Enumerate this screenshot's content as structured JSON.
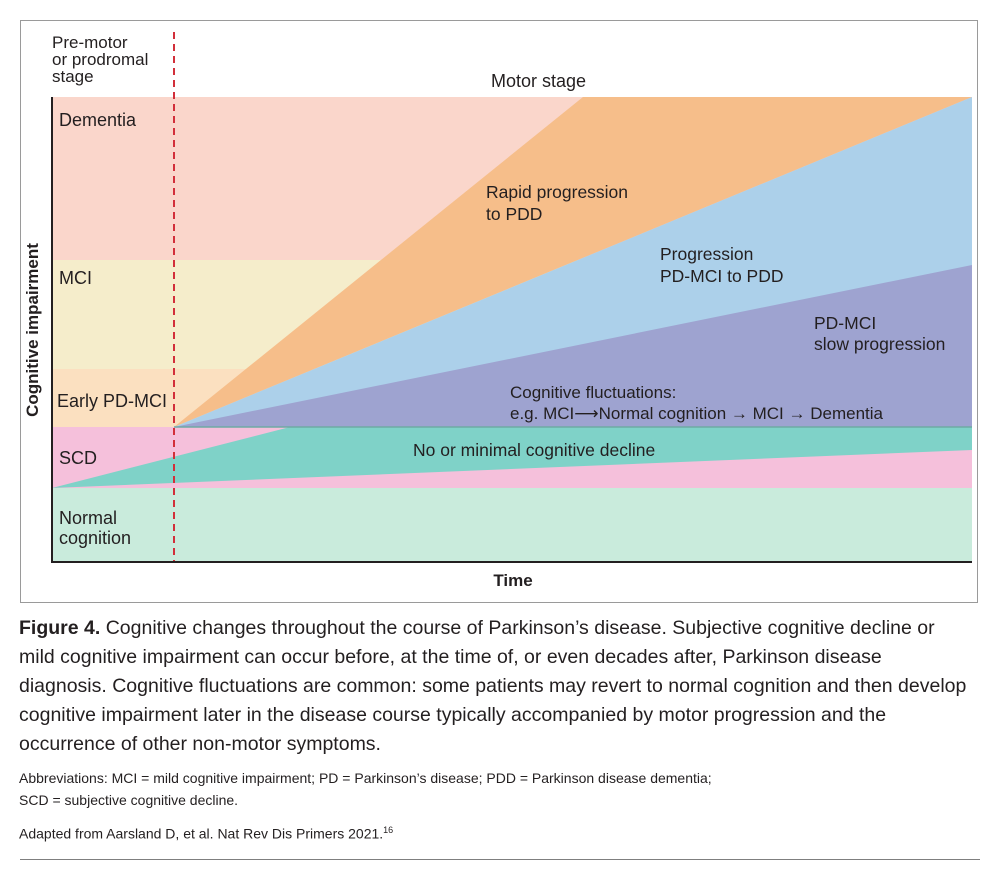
{
  "diagram": {
    "stage_labels": {
      "premotor": [
        "Pre-motor",
        "or prodromal",
        "stage"
      ],
      "motor": "Motor stage"
    },
    "y_axis_label": "Cognitive impairment",
    "x_axis_label": "Time",
    "level_labels": {
      "dementia": "Dementia",
      "mci": "MCI",
      "early_pd_mci": "Early PD-MCI",
      "scd": "SCD",
      "normal": [
        "Normal",
        "cognition"
      ]
    },
    "trajectory_labels": {
      "rapid": [
        "Rapid progression",
        "to PDD"
      ],
      "progression": [
        "Progression",
        "PD-MCI to PDD"
      ],
      "slow": [
        "PD-MCI",
        "slow progression"
      ],
      "fluctuations": [
        "Cognitive fluctuations:",
        "e.g. MCI⟶Normal cognition → MCI → Dementia"
      ],
      "no_decline": "No or minimal cognitive decline"
    },
    "colors": {
      "dementia_band": "#fad6cb",
      "mci_band": "#f5edcb",
      "early_band": "#fbe0c0",
      "scd_band": "#f5c0db",
      "normal_band": "#c9ebdc",
      "rapid": "#f6be8a",
      "progression": "#acd0ea",
      "slow": "#9ea3d0",
      "minimal": "#7fd2c8",
      "onset_line": "#d22f3a"
    }
  },
  "caption": {
    "label": "Figure 4.",
    "text": " Cognitive changes throughout the course of Parkinson’s disease. Subjective cognitive decline or mild cognitive impairment can occur before, at the time of, or even decades after, Parkinson disease diagnosis. Cognitive fluctuations are common: some patients may revert to normal cognition and then develop cognitive impairment later in the disease course typically accompanied by motor progression and the occurrence of other non-motor symptoms."
  },
  "abbreviations": [
    "Abbreviations: MCI = mild cognitive impairment; PD = Parkinson’s disease; PDD = Parkinson disease dementia;",
    "SCD = subjective cognitive decline."
  ],
  "source": {
    "text": "Adapted from Aarsland D, et al. Nat Rev Dis Primers 2021.",
    "ref": "16"
  }
}
